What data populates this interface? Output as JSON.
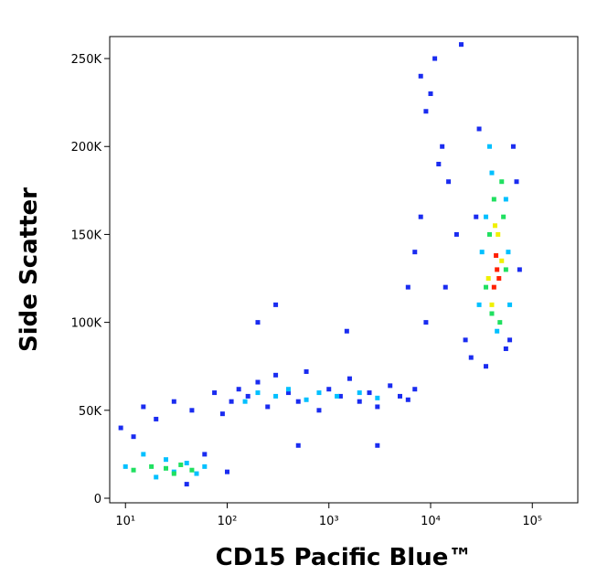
{
  "chart_data": {
    "type": "scatter",
    "x_label": "CD15 Pacific Blue™",
    "y_label": "Side Scatter",
    "xscale": "log",
    "xlim": [
      7,
      280000
    ],
    "ylim": [
      -2600,
      262500
    ],
    "xticks": [
      {
        "value": 10,
        "label": "10¹"
      },
      {
        "value": 100,
        "label": "10²"
      },
      {
        "value": 1000,
        "label": "10³"
      },
      {
        "value": 10000,
        "label": "10⁴"
      },
      {
        "value": 100000,
        "label": "10⁵"
      }
    ],
    "yticks": [
      0,
      {
        "value": 50000,
        "label": "50K"
      },
      {
        "value": 100000,
        "label": "100K"
      },
      {
        "value": 150000,
        "label": "150K"
      },
      {
        "value": 200000,
        "label": "200K"
      },
      {
        "value": 250000,
        "label": "250K"
      }
    ],
    "series": [
      {
        "color": "#1a2cf0",
        "x": [
          9,
          12,
          15,
          20,
          30,
          45,
          60,
          75,
          90,
          110,
          130,
          160,
          200,
          250,
          300,
          400,
          500,
          600,
          800,
          1000,
          1300,
          1600,
          2000,
          2500,
          3000,
          4000,
          5000,
          6000,
          7000,
          8000,
          9000,
          11000,
          13000,
          15000,
          18000,
          20000,
          6000,
          8000,
          10000,
          12000,
          9000,
          7000,
          14000,
          22000,
          25000,
          70000,
          65000,
          30000,
          28000,
          60000,
          55000,
          35000,
          75000,
          500,
          300,
          3000,
          200,
          100,
          40,
          1500
        ],
        "values": [
          40000,
          35000,
          52000,
          45000,
          55000,
          50000,
          25000,
          60000,
          48000,
          55000,
          62000,
          58000,
          66000,
          52000,
          70000,
          60000,
          55000,
          72000,
          50000,
          62000,
          58000,
          68000,
          55000,
          60000,
          52000,
          64000,
          58000,
          56000,
          62000,
          240000,
          220000,
          250000,
          200000,
          180000,
          150000,
          258000,
          120000,
          160000,
          230000,
          190000,
          100000,
          140000,
          120000,
          90000,
          80000,
          180000,
          200000,
          210000,
          160000,
          90000,
          85000,
          75000,
          130000,
          30000,
          110000,
          30000,
          100000,
          15000,
          8000,
          95000
        ]
      },
      {
        "color": "#00c0ff",
        "x": [
          10,
          15,
          20,
          25,
          30,
          40,
          50,
          60,
          150,
          200,
          300,
          400,
          600,
          800,
          1200,
          2000,
          3000,
          30000,
          35000,
          40000,
          55000,
          60000,
          32000,
          58000,
          45000,
          38000
        ],
        "values": [
          18000,
          25000,
          12000,
          22000,
          15000,
          20000,
          14000,
          18000,
          55000,
          60000,
          58000,
          62000,
          56000,
          60000,
          58000,
          60000,
          57000,
          110000,
          160000,
          185000,
          170000,
          110000,
          140000,
          140000,
          95000,
          200000
        ]
      },
      {
        "color": "#20e060",
        "x": [
          12,
          18,
          25,
          30,
          35,
          45,
          35000,
          38000,
          42000,
          52000,
          55000,
          48000,
          40000,
          50000
        ],
        "values": [
          16000,
          18000,
          17000,
          14000,
          19000,
          16000,
          120000,
          150000,
          170000,
          160000,
          130000,
          100000,
          105000,
          180000
        ]
      },
      {
        "color": "#f0f000",
        "x": [
          40000,
          46000,
          50000,
          43000,
          37000
        ],
        "values": [
          110000,
          150000,
          135000,
          155000,
          125000
        ]
      },
      {
        "color": "#ff2000",
        "x": [
          42000,
          45000,
          47000,
          44000
        ],
        "values": [
          120000,
          130000,
          125000,
          138000
        ]
      }
    ]
  }
}
